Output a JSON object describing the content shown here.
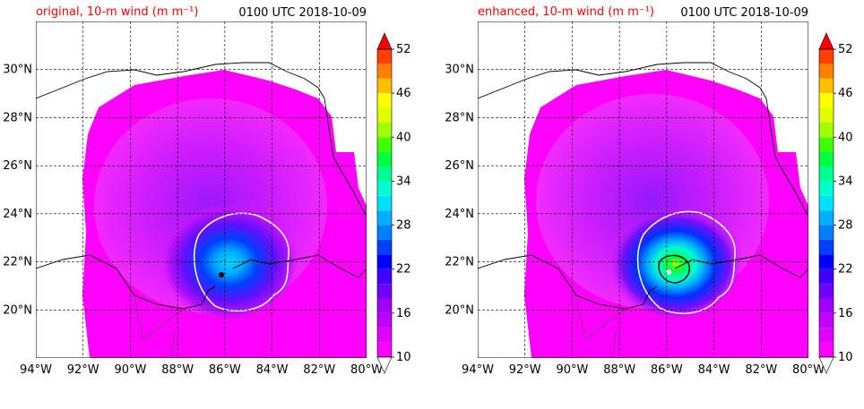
{
  "colors": {
    "title_accent": "#ff0000",
    "coast": "#000000",
    "grid": "#000000",
    "contour": "#ffffff",
    "contour_strong": "#000000"
  },
  "chart_data": [
    {
      "type": "heatmap",
      "title": "original, 10-m wind (m m⁻¹)",
      "time_label": "0100 UTC 2018-10-09",
      "x_ticks": [
        "94°W",
        "92°W",
        "90°W",
        "88°W",
        "86°W",
        "84°W",
        "82°W",
        "80°W"
      ],
      "y_ticks": [
        "20°N",
        "22°N",
        "24°N",
        "26°N",
        "28°N",
        "30°N"
      ],
      "xlim": [
        -94,
        -80
      ],
      "ylim": [
        18,
        32
      ],
      "grid": true,
      "colorbar": {
        "ticks": [
          "52",
          "46",
          "40",
          "34",
          "28",
          "22",
          "16",
          "10"
        ],
        "levels": [
          10,
          12,
          14,
          16,
          18,
          20,
          22,
          24,
          26,
          28,
          30,
          32,
          34,
          36,
          38,
          40,
          42,
          44,
          46,
          48,
          50,
          52
        ],
        "extend": "both"
      },
      "storm_center": [
        -85.7,
        22.5
      ],
      "peak_wind": 34
    },
    {
      "type": "heatmap",
      "title": "enhanced, 10-m wind (m m⁻¹)",
      "time_label": "0100 UTC 2018-10-09",
      "x_ticks": [
        "94°W",
        "92°W",
        "90°W",
        "88°W",
        "86°W",
        "84°W",
        "82°W",
        "80°W"
      ],
      "y_ticks": [
        "20°N",
        "22°N",
        "24°N",
        "26°N",
        "28°N",
        "30°N"
      ],
      "xlim": [
        -94,
        -80
      ],
      "ylim": [
        18,
        32
      ],
      "grid": true,
      "colorbar": {
        "ticks": [
          "52",
          "46",
          "40",
          "34",
          "28",
          "22",
          "16",
          "10"
        ],
        "levels": [
          10,
          12,
          14,
          16,
          18,
          20,
          22,
          24,
          26,
          28,
          30,
          32,
          34,
          36,
          38,
          40,
          42,
          44,
          46,
          48,
          50,
          52
        ],
        "extend": "both"
      },
      "storm_center": [
        -85.7,
        22.5
      ],
      "peak_wind": 42
    }
  ]
}
